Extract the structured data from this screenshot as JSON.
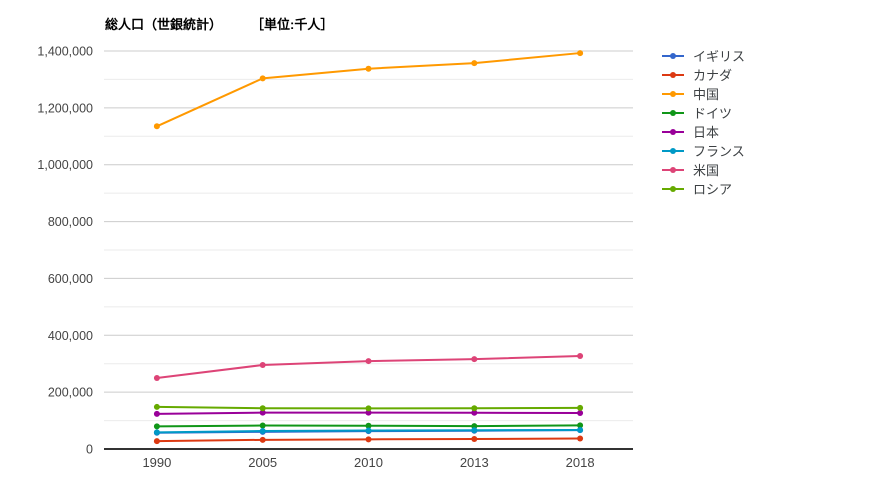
{
  "title": {
    "main": "総人口（世銀統計）",
    "unit": "［単位:千人］"
  },
  "chart_data": {
    "type": "line",
    "title": "総人口（世銀統計）　［単位:千人］",
    "xlabel": "",
    "ylabel": "単位:千人",
    "categories": [
      "1990",
      "2005",
      "2010",
      "2013",
      "2018"
    ],
    "series": [
      {
        "key": "uk",
        "name": "イギリス",
        "color": "#3366cc",
        "values": [
          57248,
          60401,
          62767,
          64128,
          66489
        ]
      },
      {
        "key": "canada",
        "name": "カナダ",
        "color": "#dc3912",
        "values": [
          27691,
          32243,
          34005,
          35083,
          37059
        ]
      },
      {
        "key": "china",
        "name": "中国",
        "color": "#ff9900",
        "values": [
          1135185,
          1303720,
          1337705,
          1357380,
          1392730
        ]
      },
      {
        "key": "germany",
        "name": "ドイツ",
        "color": "#109618",
        "values": [
          79433,
          82469,
          81777,
          80646,
          82928
        ]
      },
      {
        "key": "japan",
        "name": "日本",
        "color": "#990099",
        "values": [
          123537,
          127773,
          128070,
          127445,
          126529
        ]
      },
      {
        "key": "france",
        "name": "フランス",
        "color": "#0099c6",
        "values": [
          58413,
          63180,
          65030,
          66003,
          66987
        ]
      },
      {
        "key": "usa",
        "name": "米国",
        "color": "#dd4477",
        "values": [
          249623,
          295517,
          309322,
          316058,
          327167
        ]
      },
      {
        "key": "russia",
        "name": "ロシア",
        "color": "#66aa00",
        "values": [
          147969,
          143518,
          142849,
          143507,
          144478
        ]
      }
    ],
    "ylim": [
      0,
      1400000
    ],
    "y_major_step": 200000,
    "y_minor_step": 100000,
    "y_tick_labels": [
      "0",
      "200,000",
      "400,000",
      "600,000",
      "800,000",
      "1,000,000",
      "1,200,000",
      "1,400,000"
    ],
    "grid": true,
    "legend_position": "right"
  },
  "colors": {
    "background": "#ffffff",
    "major_gridline": "#cccccc",
    "minor_gridline": "#ebebeb",
    "baseline": "#333333",
    "axis_text": "#444444",
    "legend_text": "#3c4043",
    "title_text": "#000000"
  }
}
